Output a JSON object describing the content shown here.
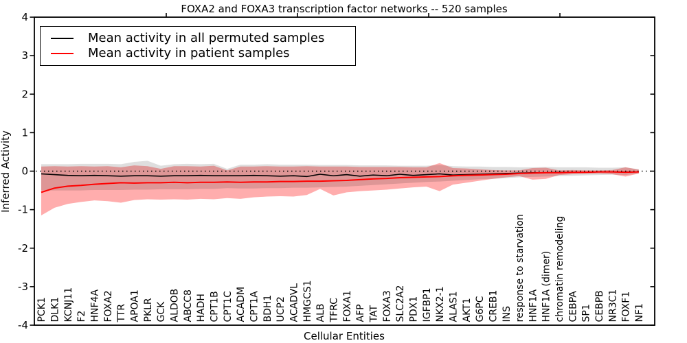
{
  "chart_data": {
    "type": "line",
    "title": "FOXA2 and FOXA3 transcription factor networks -- 520 samples",
    "xlabel": "Cellular Entities",
    "ylabel": "Inferred Activity",
    "ylim": [
      -4,
      4
    ],
    "yticks": [
      4,
      3,
      2,
      1,
      0,
      -1,
      -2,
      -3,
      -4
    ],
    "grid": false,
    "legend_position": "upper left",
    "reference_line": {
      "y": 0,
      "style": "dotted",
      "color": "#000000"
    },
    "categories": [
      "PCK1",
      "DLK1",
      "KCNJ11",
      "F2",
      "HNF4A",
      "FOXA2",
      "TTR",
      "APOA1",
      "PKLR",
      "GCK",
      "ALDOB",
      "ABCC8",
      "HADH",
      "CPT1B",
      "CPT1C",
      "ACADM",
      "CPT1A",
      "BDH1",
      "UCP2",
      "ACADVL",
      "HMGCS1",
      "ALB",
      "TFRC",
      "FOXA1",
      "AFP",
      "TAT",
      "FOXA3",
      "SLC2A2",
      "PDX1",
      "IGFBP1",
      "NKX2-1",
      "ALAS1",
      "AKT1",
      "G6PC",
      "CREB1",
      "INS",
      "response to starvation",
      "HNF1A",
      "HNF1A (dimer)",
      "chromatin remodeling",
      "CEBPA",
      "SP1",
      "CEBPB",
      "NR3C1",
      "FOXF1",
      "NF1"
    ],
    "series": [
      {
        "name": "Mean activity in all permuted samples",
        "color": "#000000",
        "band_color": "rgba(0,0,0,0.13)",
        "values": [
          -0.07,
          -0.09,
          -0.11,
          -0.12,
          -0.11,
          -0.12,
          -0.13,
          -0.12,
          -0.12,
          -0.13,
          -0.12,
          -0.12,
          -0.11,
          -0.12,
          -0.12,
          -0.12,
          -0.11,
          -0.12,
          -0.13,
          -0.12,
          -0.14,
          -0.08,
          -0.12,
          -0.09,
          -0.13,
          -0.1,
          -0.12,
          -0.08,
          -0.11,
          -0.09,
          -0.07,
          -0.1,
          -0.09,
          -0.08,
          -0.07,
          -0.06,
          -0.05,
          -0.04,
          -0.04,
          -0.03,
          -0.03,
          -0.03,
          -0.02,
          -0.02,
          -0.02,
          -0.02
        ],
        "band_upper": [
          0.18,
          0.18,
          0.18,
          0.19,
          0.19,
          0.19,
          0.18,
          0.24,
          0.27,
          0.14,
          0.18,
          0.19,
          0.18,
          0.19,
          0.06,
          0.17,
          0.17,
          0.18,
          0.17,
          0.17,
          0.17,
          0.16,
          0.16,
          0.16,
          0.15,
          0.15,
          0.15,
          0.14,
          0.14,
          0.14,
          0.16,
          0.13,
          0.12,
          0.12,
          0.11,
          0.11,
          0.1,
          0.1,
          0.11,
          0.1,
          0.1,
          0.1,
          0.09,
          0.09,
          0.1,
          0.05
        ],
        "band_lower": [
          -0.5,
          -0.5,
          -0.5,
          -0.5,
          -0.49,
          -0.49,
          -0.49,
          -0.48,
          -0.48,
          -0.47,
          -0.47,
          -0.47,
          -0.46,
          -0.46,
          -0.44,
          -0.45,
          -0.45,
          -0.44,
          -0.44,
          -0.43,
          -0.43,
          -0.42,
          -0.41,
          -0.4,
          -0.38,
          -0.36,
          -0.34,
          -0.32,
          -0.3,
          -0.28,
          -0.27,
          -0.25,
          -0.23,
          -0.21,
          -0.2,
          -0.18,
          -0.16,
          -0.15,
          -0.14,
          -0.13,
          -0.12,
          -0.11,
          -0.1,
          -0.09,
          -0.1,
          -0.06
        ]
      },
      {
        "name": "Mean activity in patient samples",
        "color": "#ff0000",
        "band_color": "rgba(255,0,0,0.32)",
        "values": [
          -0.55,
          -0.44,
          -0.39,
          -0.37,
          -0.34,
          -0.32,
          -0.3,
          -0.31,
          -0.3,
          -0.3,
          -0.29,
          -0.3,
          -0.29,
          -0.29,
          -0.28,
          -0.29,
          -0.28,
          -0.28,
          -0.27,
          -0.27,
          -0.26,
          -0.26,
          -0.25,
          -0.24,
          -0.22,
          -0.2,
          -0.19,
          -0.17,
          -0.16,
          -0.15,
          -0.14,
          -0.12,
          -0.11,
          -0.1,
          -0.09,
          -0.08,
          -0.06,
          -0.05,
          -0.04,
          -0.04,
          -0.03,
          -0.03,
          -0.02,
          -0.02,
          -0.03,
          -0.02
        ],
        "band_upper": [
          0.12,
          0.13,
          0.12,
          0.13,
          0.12,
          0.13,
          0.1,
          0.15,
          0.13,
          0.06,
          0.13,
          0.13,
          0.12,
          0.14,
          0.02,
          0.12,
          0.12,
          0.13,
          0.12,
          0.12,
          0.13,
          0.12,
          0.12,
          0.12,
          0.11,
          0.11,
          0.11,
          0.11,
          0.1,
          0.1,
          0.21,
          0.08,
          0.07,
          0.05,
          0.03,
          0.02,
          0.02,
          0.08,
          0.09,
          0.02,
          0.03,
          0.02,
          0.02,
          0.03,
          0.1,
          0.04
        ],
        "band_lower": [
          -1.15,
          -0.95,
          -0.85,
          -0.8,
          -0.76,
          -0.78,
          -0.82,
          -0.75,
          -0.73,
          -0.74,
          -0.73,
          -0.74,
          -0.72,
          -0.73,
          -0.7,
          -0.72,
          -0.68,
          -0.66,
          -0.65,
          -0.66,
          -0.62,
          -0.46,
          -0.63,
          -0.55,
          -0.52,
          -0.5,
          -0.48,
          -0.45,
          -0.42,
          -0.4,
          -0.52,
          -0.35,
          -0.3,
          -0.25,
          -0.2,
          -0.16,
          -0.13,
          -0.22,
          -0.2,
          -0.1,
          -0.08,
          -0.07,
          -0.06,
          -0.08,
          -0.14,
          -0.06
        ]
      }
    ]
  }
}
